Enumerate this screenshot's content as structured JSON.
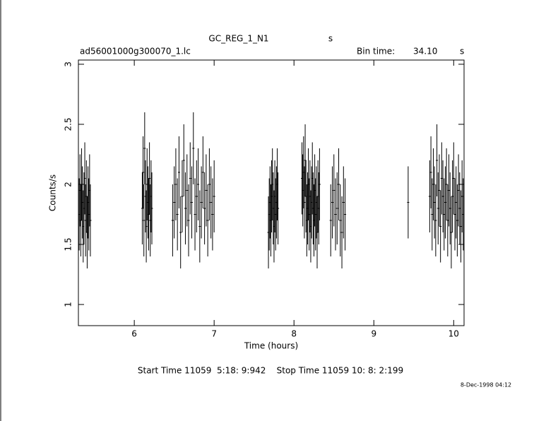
{
  "chart_data": {
    "type": "errorbar",
    "title": "GC_REG_1_N1",
    "title_unit": "s",
    "file_name": "ad56001000g300070_1.lc",
    "bin_time_label": "Bin time:",
    "bin_time": "34.10",
    "bin_time_unit": "s",
    "x_label": "Time (hours)",
    "y_label": "Counts/s",
    "time_range": "Start Time 11059  5:18: 9:942    Stop Time 11059 10: 8: 2:199",
    "timestamp": "8-Dec-1998 04:12",
    "xlim": [
      5.3,
      10.13
    ],
    "xticks": [
      6,
      7,
      8,
      9,
      10
    ],
    "ylim": [
      0.824,
      3.035
    ],
    "yticks": [
      1,
      1.5,
      2,
      2.5,
      3
    ],
    "color": "#000000",
    "error": 0.3,
    "x": [
      5.31,
      5.32,
      5.33,
      5.34,
      5.35,
      5.36,
      5.37,
      5.38,
      5.39,
      5.4,
      5.41,
      5.42,
      5.43,
      5.44,
      5.45,
      6.1,
      6.11,
      6.12,
      6.13,
      6.14,
      6.15,
      6.16,
      6.17,
      6.18,
      6.19,
      6.2,
      6.21,
      6.22,
      6.48,
      6.5,
      6.52,
      6.54,
      6.56,
      6.58,
      6.6,
      6.62,
      6.64,
      6.66,
      6.68,
      6.7,
      6.72,
      6.74,
      6.76,
      6.78,
      6.8,
      6.82,
      6.84,
      6.86,
      6.88,
      6.9,
      6.92,
      6.94,
      6.96,
      6.98,
      7.0,
      7.68,
      7.69,
      7.7,
      7.71,
      7.72,
      7.73,
      7.74,
      7.75,
      7.76,
      7.77,
      7.78,
      7.79,
      7.8,
      8.1,
      8.11,
      8.12,
      8.13,
      8.14,
      8.15,
      8.16,
      8.17,
      8.18,
      8.19,
      8.2,
      8.21,
      8.22,
      8.23,
      8.24,
      8.25,
      8.26,
      8.27,
      8.28,
      8.29,
      8.3,
      8.31,
      8.32,
      8.46,
      8.48,
      8.5,
      8.52,
      8.54,
      8.56,
      8.58,
      8.6,
      8.62,
      8.64,
      9.43,
      9.7,
      9.715,
      9.73,
      9.745,
      9.76,
      9.775,
      9.79,
      9.805,
      9.82,
      9.835,
      9.85,
      9.865,
      9.88,
      9.895,
      9.91,
      9.925,
      9.94,
      9.955,
      9.97,
      9.985,
      10.0,
      10.015,
      10.03,
      10.045,
      10.06,
      10.075,
      10.09,
      10.105,
      10.12
    ],
    "values": [
      1.75,
      1.95,
      1.7,
      2.0,
      1.85,
      1.65,
      1.8,
      2.05,
      1.7,
      1.9,
      1.6,
      1.85,
      1.75,
      1.95,
      1.7,
      1.8,
      2.1,
      1.7,
      2.3,
      1.9,
      1.65,
      2.0,
      1.85,
      1.75,
      2.05,
      1.7,
      1.9,
      1.8,
      1.7,
      1.85,
      2.0,
      1.75,
      2.1,
      1.6,
      1.9,
      2.2,
      1.8,
      1.95,
      1.7,
      2.05,
      1.85,
      2.3,
      1.75,
      1.9,
      2.0,
      1.65,
      1.85,
      2.1,
      1.8,
      1.95,
      1.7,
      2.0,
      1.85,
      1.75,
      1.9,
      1.6,
      1.75,
      1.85,
      1.7,
      1.9,
      2.0,
      1.8,
      1.65,
      1.9,
      1.75,
      1.85,
      2.0,
      1.8,
      2.05,
      1.95,
      2.1,
      1.85,
      2.2,
      1.9,
      1.7,
      1.8,
      2.0,
      1.75,
      1.9,
      1.65,
      1.85,
      2.05,
      1.8,
      1.7,
      1.95,
      1.75,
      1.85,
      1.6,
      1.9,
      1.8,
      2.0,
      1.7,
      1.85,
      1.95,
      1.75,
      1.8,
      2.0,
      1.7,
      1.6,
      1.85,
      1.75,
      1.85,
      1.9,
      2.1,
      1.75,
      2.0,
      1.85,
      1.7,
      2.2,
      1.8,
      1.95,
      1.65,
      2.05,
      1.9,
      1.75,
      1.85,
      2.0,
      1.7,
      1.95,
      1.8,
      1.6,
      1.9,
      2.05,
      1.75,
      1.85,
      1.7,
      1.95,
      1.8,
      1.65,
      1.9,
      1.75
    ]
  }
}
